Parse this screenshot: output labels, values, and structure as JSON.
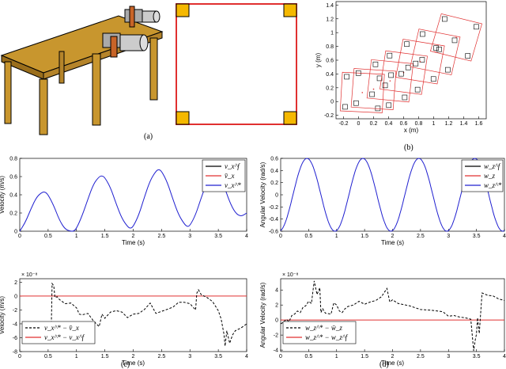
{
  "captions": {
    "a": "(a)",
    "b": "(b)",
    "c": "(c)",
    "d": "(d)"
  },
  "colors": {
    "table": "#C8962E",
    "table_dark": "#9A6E1C",
    "pad": "#F5B800",
    "frame": "#E03030",
    "blue": "#2020D0",
    "red": "#E03030",
    "black": "#000000"
  },
  "chart_data": [
    {
      "id": "b",
      "type": "scatter",
      "xlabel": "x (m)",
      "ylabel": "y (m)",
      "xlim": [
        -0.3,
        1.7
      ],
      "ylim": [
        -0.25,
        1.45
      ],
      "xticks": [
        "-0.2",
        "0",
        "0.2",
        "0.4",
        "0.6",
        "0.8",
        "1",
        "1.2",
        "1.4",
        "1.6"
      ],
      "yticks": [
        "-0.2",
        "0",
        "0.2",
        "0.4",
        "0.6",
        "0.8",
        "1",
        "1.2",
        "1.4"
      ],
      "frames": [
        {
          "cx": 0.05,
          "cy": 0.13,
          "a": -3
        },
        {
          "cx": 0.2,
          "cy": 0.18,
          "a": -4
        },
        {
          "cx": 0.42,
          "cy": 0.3,
          "a": -6
        },
        {
          "cx": 0.6,
          "cy": 0.42,
          "a": -8
        },
        {
          "cx": 0.82,
          "cy": 0.58,
          "a": -10
        },
        {
          "cx": 1.02,
          "cy": 0.72,
          "a": -12
        },
        {
          "cx": 1.3,
          "cy": 0.93,
          "a": -15
        }
      ],
      "frame_half_size": 0.28
    },
    {
      "id": "c-top",
      "type": "line",
      "xlabel": "Time (s)",
      "ylabel": "Velocity (m/s)",
      "xlim": [
        0,
        4
      ],
      "ylim": [
        0,
        0.8
      ],
      "xticks": [
        "0",
        "0.5",
        "1",
        "1.5",
        "2",
        "2.5",
        "3",
        "3.5",
        "4"
      ],
      "yticks": [
        "0",
        "0.2",
        "0.4",
        "0.6",
        "0.8"
      ],
      "legend": [
        "v_x^f",
        "v̄_x",
        "v_x^*"
      ],
      "series": {
        "x": [
          0,
          0.1,
          0.2,
          0.3,
          0.4,
          0.45,
          0.5,
          0.6,
          0.7,
          0.8,
          0.9,
          0.95,
          1.0,
          1.1,
          1.2,
          1.3,
          1.4,
          1.45,
          1.5,
          1.6,
          1.7,
          1.8,
          1.9,
          1.95,
          2.0,
          2.1,
          2.2,
          2.3,
          2.4,
          2.45,
          2.5,
          2.6,
          2.7,
          2.8,
          2.9,
          2.95,
          3.0,
          3.1,
          3.2,
          3.3,
          3.4,
          3.45,
          3.5,
          3.6,
          3.7,
          3.8,
          3.9,
          4.0
        ],
        "y": [
          0.0,
          0.1,
          0.25,
          0.38,
          0.43,
          0.43,
          0.4,
          0.28,
          0.12,
          0.02,
          0.0,
          0.0,
          0.03,
          0.17,
          0.35,
          0.52,
          0.6,
          0.61,
          0.59,
          0.48,
          0.3,
          0.14,
          0.05,
          0.03,
          0.05,
          0.18,
          0.38,
          0.56,
          0.66,
          0.68,
          0.66,
          0.54,
          0.35,
          0.18,
          0.08,
          0.05,
          0.06,
          0.18,
          0.37,
          0.54,
          0.63,
          0.64,
          0.62,
          0.5,
          0.32,
          0.2,
          0.16,
          0.2
        ]
      }
    },
    {
      "id": "d-top",
      "type": "line",
      "xlabel": "Time (s)",
      "ylabel": "Angular Velocity (rad/s)",
      "xlim": [
        0,
        4
      ],
      "ylim": [
        -0.6,
        0.6
      ],
      "xticks": [
        "0",
        "0.5",
        "1",
        "1.5",
        "2",
        "2.5",
        "3",
        "3.5",
        "4"
      ],
      "yticks": [
        "-0.6",
        "-0.4",
        "-0.2",
        "0",
        "0.2",
        "0.4",
        "0.6"
      ],
      "legend": [
        "w_z^f",
        "w_z",
        "w_z^*"
      ],
      "amplitude": 0.6,
      "period": 1.0,
      "phase_t": 0.22
    },
    {
      "id": "c-bottom",
      "type": "line",
      "xlabel": "Time (s)",
      "ylabel": "Velocity (m/s)",
      "exponent": "× 10⁻⁸",
      "xlim": [
        0,
        4
      ],
      "ylim": [
        -8,
        2.5
      ],
      "xticks": [
        "0",
        "0.5",
        "1",
        "1.5",
        "2",
        "2.5",
        "3",
        "3.5",
        "4"
      ],
      "yticks": [
        "-8",
        "-6",
        "-4",
        "-2",
        "0",
        "2"
      ],
      "legend": [
        "v_x^* − v̄_x",
        "v_x^* − v_x^f"
      ],
      "dashed": {
        "x": [
          0.55,
          0.57,
          0.6,
          0.62,
          0.66,
          0.7,
          0.8,
          0.9,
          1.0,
          1.05,
          1.1,
          1.2,
          1.3,
          1.4,
          1.45,
          1.5,
          1.6,
          1.7,
          1.8,
          1.9,
          2.0,
          2.1,
          2.2,
          2.3,
          2.4,
          2.5,
          2.6,
          2.7,
          2.8,
          2.9,
          3.0,
          3.1,
          3.12,
          3.15,
          3.2,
          3.3,
          3.4,
          3.5,
          3.55,
          3.6,
          3.62,
          3.65,
          3.7,
          3.75,
          3.8,
          3.9,
          4.0
        ],
        "y": [
          -6.8,
          1.8,
          1.5,
          -0.2,
          -0.1,
          -0.5,
          -1.1,
          -1.0,
          -1.7,
          -2.6,
          -2.7,
          -2.5,
          -3.6,
          -4.4,
          -2.6,
          -3.2,
          -2.3,
          -2.1,
          -2.3,
          -3.1,
          -2.6,
          -2.5,
          -1.9,
          -1.0,
          -2.5,
          -2.2,
          -1.9,
          -1.6,
          -0.9,
          -0.9,
          -1.1,
          -2.0,
          0.4,
          0.9,
          0.2,
          -0.2,
          -0.8,
          -2.1,
          -3.3,
          -5.5,
          -7.2,
          -5.0,
          -6.8,
          -5.6,
          -5.0,
          -4.6,
          -4.0
        ]
      }
    },
    {
      "id": "d-bottom",
      "type": "line",
      "xlabel": "Time (s)",
      "ylabel": "Angular Velocity (rad/s)",
      "exponent": "× 10⁻⁸",
      "xlim": [
        0,
        4
      ],
      "ylim": [
        -4.2,
        5.5
      ],
      "xticks": [
        "0",
        "0.5",
        "1",
        "1.5",
        "2",
        "2.5",
        "3",
        "3.5",
        "4"
      ],
      "yticks": [
        "-4",
        "-2",
        "0",
        "2",
        "4"
      ],
      "legend": [
        "w_z^* − w̄_z",
        "w_z^* − w_z^f"
      ],
      "dashed": {
        "x": [
          0.0,
          0.05,
          0.1,
          0.15,
          0.2,
          0.25,
          0.3,
          0.35,
          0.4,
          0.45,
          0.5,
          0.55,
          0.6,
          0.65,
          0.7,
          0.72,
          0.75,
          0.8,
          0.9,
          0.95,
          1.0,
          1.05,
          1.1,
          1.15,
          1.2,
          1.3,
          1.4,
          1.5,
          1.6,
          1.7,
          1.8,
          1.9,
          1.95,
          2.0,
          2.1,
          2.3,
          2.5,
          2.7,
          2.9,
          3.0,
          3.1,
          3.2,
          3.3,
          3.4,
          3.45,
          3.48,
          3.5,
          3.52,
          3.55,
          3.6,
          3.7,
          3.8,
          3.9,
          4.0
        ],
        "y": [
          -0.5,
          -0.3,
          0.1,
          -0.2,
          0.6,
          0.8,
          1.2,
          1.0,
          1.7,
          1.9,
          2.5,
          2.2,
          5.2,
          3.4,
          4.3,
          1.0,
          1.5,
          0.9,
          0.8,
          2.3,
          2.0,
          1.2,
          1.0,
          1.5,
          1.8,
          2.0,
          2.5,
          2.1,
          2.4,
          2.6,
          3.1,
          4.2,
          2.4,
          2.7,
          2.2,
          1.9,
          1.4,
          1.3,
          1.1,
          0.5,
          0.6,
          0.4,
          0.3,
          0.1,
          -4.1,
          -2.6,
          -1.9,
          0.3,
          -1.8,
          3.6,
          3.3,
          3.2,
          2.8,
          2.6
        ]
      }
    }
  ]
}
